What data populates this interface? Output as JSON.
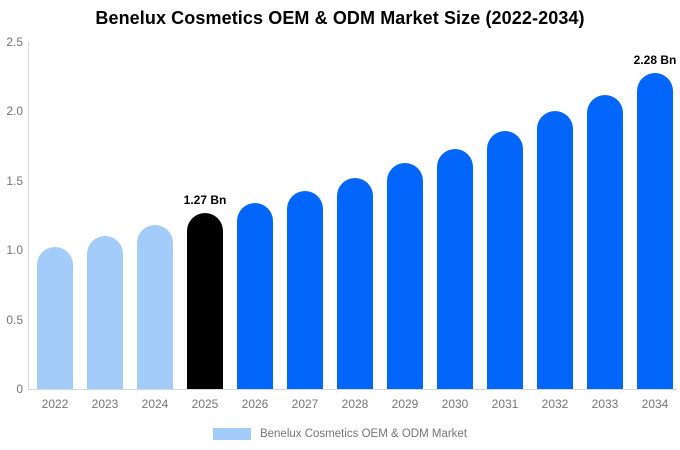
{
  "chart_data": {
    "type": "bar",
    "title": "Benelux Cosmetics OEM & ODM Market Size (2022-2034)",
    "categories": [
      "2022",
      "2023",
      "2024",
      "2025",
      "2026",
      "2027",
      "2028",
      "2029",
      "2030",
      "2031",
      "2032",
      "2033",
      "2034"
    ],
    "values": [
      1.02,
      1.1,
      1.18,
      1.27,
      1.34,
      1.43,
      1.52,
      1.63,
      1.73,
      1.86,
      2.0,
      2.12,
      2.28
    ],
    "unit": "Bn",
    "bar_roles": [
      "past",
      "past",
      "past",
      "highlight",
      "forecast",
      "forecast",
      "forecast",
      "forecast",
      "forecast",
      "forecast",
      "forecast",
      "forecast",
      "forecast"
    ],
    "bar_colors": {
      "past": "#A3CCFB",
      "highlight": "#000000",
      "forecast": "#0266FB"
    },
    "annotations": [
      {
        "category": "2025",
        "label": "1.27 Bn"
      },
      {
        "category": "2034",
        "label": "2.28 Bn"
      }
    ],
    "xlabel": "",
    "ylabel": "",
    "ylim": [
      0,
      2.5
    ],
    "ytick_values": [
      0,
      0.5,
      1.0,
      1.5,
      2.0,
      2.5
    ],
    "ytick_labels": [
      "0",
      "0.5",
      "1.0",
      "1.5",
      "2.0",
      "2.5"
    ],
    "grid": false,
    "legend_position": "bottom"
  },
  "legend": {
    "label": "Benelux Cosmetics OEM & ODM Market",
    "swatch_color": "#A3CCFB"
  },
  "colors": {
    "axis_line": "#d6d6d6",
    "tick_text": "#757575",
    "title_text": "#000000",
    "annotation_text": "#000000",
    "background": "#ffffff"
  }
}
